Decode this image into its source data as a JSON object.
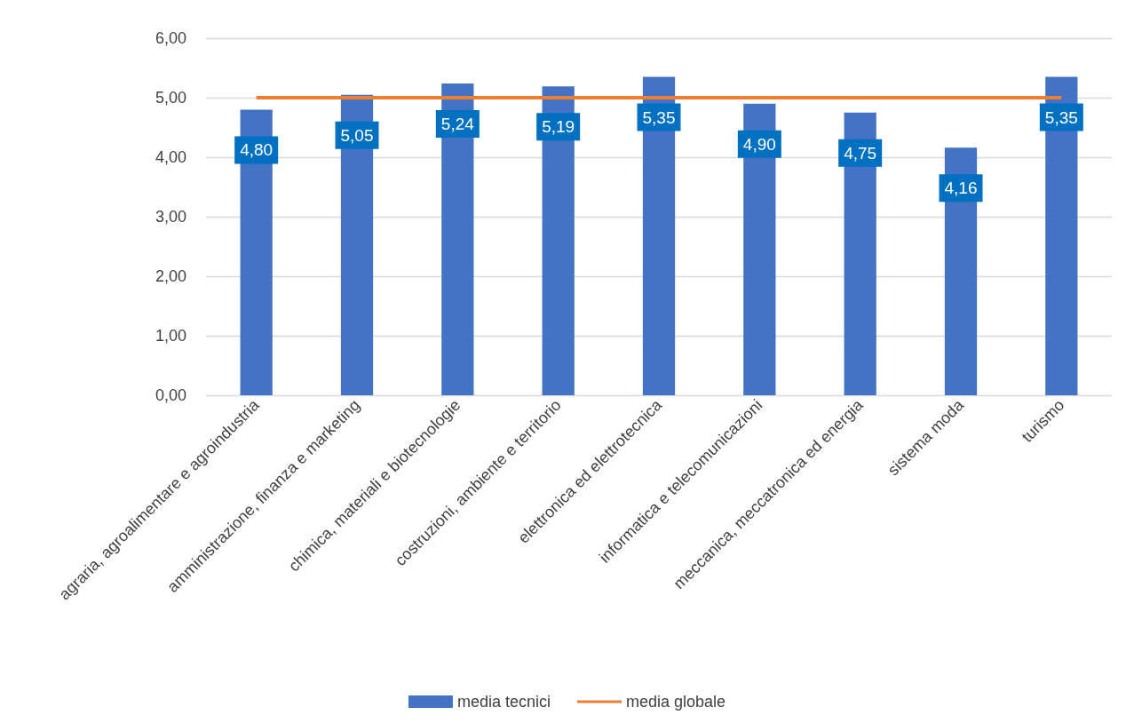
{
  "chart_data": {
    "type": "bar",
    "categories": [
      "agraria, agroalimentare e agroindustria",
      "amministrazione, finanza e marketing",
      "chimica, materiali e biotecnologie",
      "costruzioni, ambiente e territorio",
      "elettronica ed elettrotecnica",
      "informatica e telecomunicazioni",
      "meccanica, meccatronica ed energia",
      "sistema moda",
      "turismo"
    ],
    "series": [
      {
        "name": "media tecnici",
        "type": "bar",
        "color": "#4472c4",
        "values": [
          4.8,
          5.05,
          5.24,
          5.19,
          5.35,
          4.9,
          4.75,
          4.16,
          5.35
        ],
        "value_labels": [
          "4,80",
          "5,05",
          "5,24",
          "5,19",
          "5,35",
          "4,90",
          "4,75",
          "4,16",
          "5,35"
        ]
      },
      {
        "name": "media globale",
        "type": "line",
        "color": "#ed7d31",
        "values": [
          5,
          5,
          5,
          5,
          5,
          5,
          5,
          5,
          5
        ]
      }
    ],
    "ylim": [
      0,
      6
    ],
    "yticks": [
      {
        "value": 0,
        "label": "0,00"
      },
      {
        "value": 1,
        "label": "1,00"
      },
      {
        "value": 2,
        "label": "2,00"
      },
      {
        "value": 3,
        "label": "3,00"
      },
      {
        "value": 4,
        "label": "4,00"
      },
      {
        "value": 5,
        "label": "5,00"
      },
      {
        "value": 6,
        "label": "6,00"
      }
    ],
    "grid": "y",
    "legend": "bottom",
    "marker": "none",
    "line_style": "solid"
  }
}
